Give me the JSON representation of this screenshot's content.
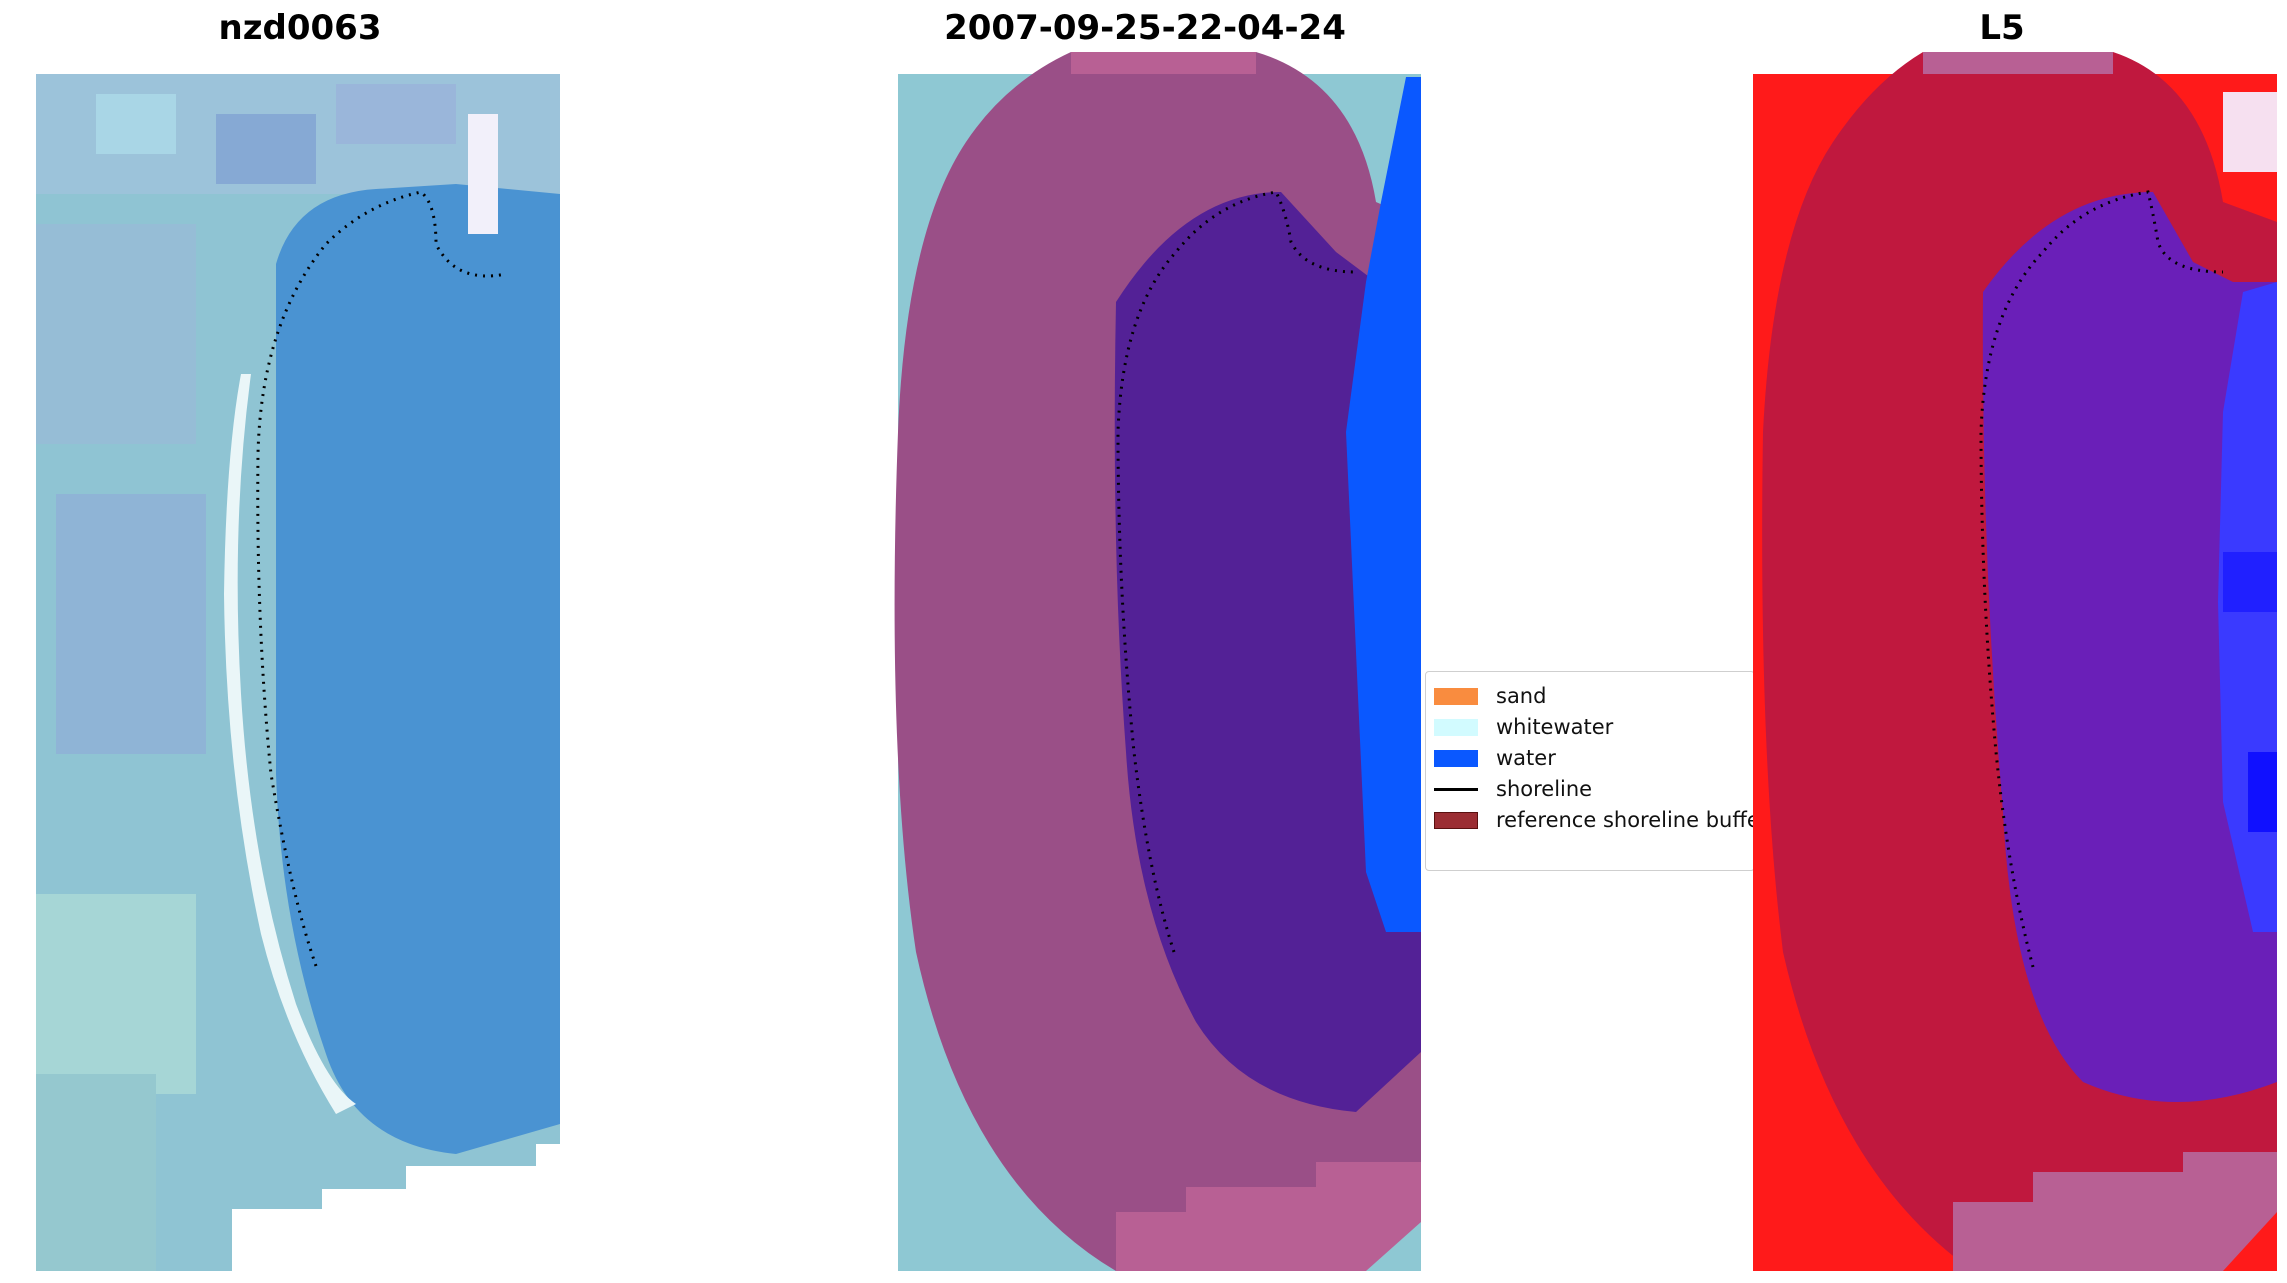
{
  "panels": [
    {
      "title": "nzd0063"
    },
    {
      "title": "2007-09-25-22-04-24"
    },
    {
      "title": "L5"
    }
  ],
  "legend": {
    "items": [
      {
        "label": "sand",
        "color": "#f98c3f",
        "kind": "swatch"
      },
      {
        "label": "whitewater",
        "color": "#d2fbff",
        "kind": "swatch"
      },
      {
        "label": "water",
        "color": "#0a58ff",
        "kind": "swatch"
      },
      {
        "label": "shoreline",
        "color": "#000000",
        "kind": "line"
      },
      {
        "label": "reference shoreline buffer",
        "color": "#9b2d33",
        "kind": "swatch"
      }
    ]
  },
  "colors": {
    "image_water": "#4a93d2",
    "image_land": "#8fc9d2",
    "buffer": "#b3598f",
    "classified_water": "#0a58ff",
    "classified_water_dark": "#532196",
    "ndwi_red": "#ff1a1a",
    "ndwi_buffer": "#c0183e",
    "ndwi_water": "#2a2aff"
  }
}
